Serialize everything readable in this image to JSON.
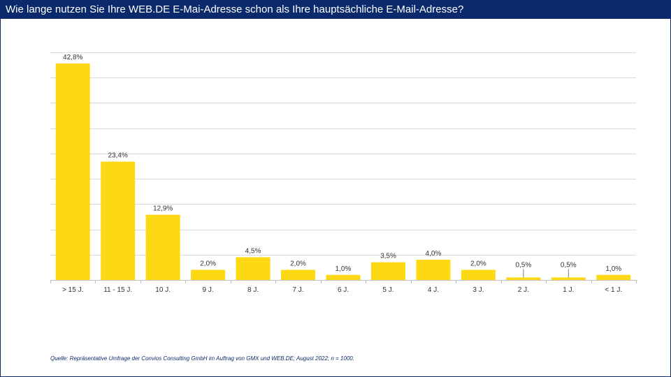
{
  "header": {
    "title": "Wie lange nutzen Sie Ihre WEB.DE E-Mai-Adresse schon als Ihre hauptsächliche E-Mail-Adresse?"
  },
  "footer": {
    "source": "Quelle: Repräsentative Umfrage  der Convios Consulting GmbH  im  Auftrag von GMX und WEB.DE;  August 2022;  n = 1000."
  },
  "colors": {
    "bar": "#FDD915",
    "header_bg": "#0B2A6B",
    "gridline": "#D9D9D9"
  },
  "chart_data": {
    "type": "bar",
    "categories": [
      "> 15 J.",
      "11 - 15 J.",
      "10 J.",
      "9 J.",
      "8 J.",
      "7 J.",
      "6 J.",
      "5 J.",
      "4 J.",
      "3 J.",
      "2 J.",
      "1 J.",
      "< 1 J."
    ],
    "values": [
      42.8,
      23.4,
      12.9,
      2.0,
      4.5,
      2.0,
      1.0,
      3.5,
      4.0,
      2.0,
      0.5,
      0.5,
      1.0
    ],
    "data_labels": [
      "42,8%",
      "23,4%",
      "12,9%",
      "2,0%",
      "4,5%",
      "2,0%",
      "1,0%",
      "3,5%",
      "4,0%",
      "2,0%",
      "0,5%",
      "0,5%",
      "1,0%"
    ],
    "title": "",
    "xlabel": "",
    "ylabel": "",
    "ylim": [
      0,
      45
    ],
    "y_gridlines": [
      0,
      5,
      10,
      15,
      20,
      25,
      30,
      35,
      40,
      45
    ],
    "y_tick_labels_shown": false,
    "grid": true,
    "legend": "none"
  }
}
